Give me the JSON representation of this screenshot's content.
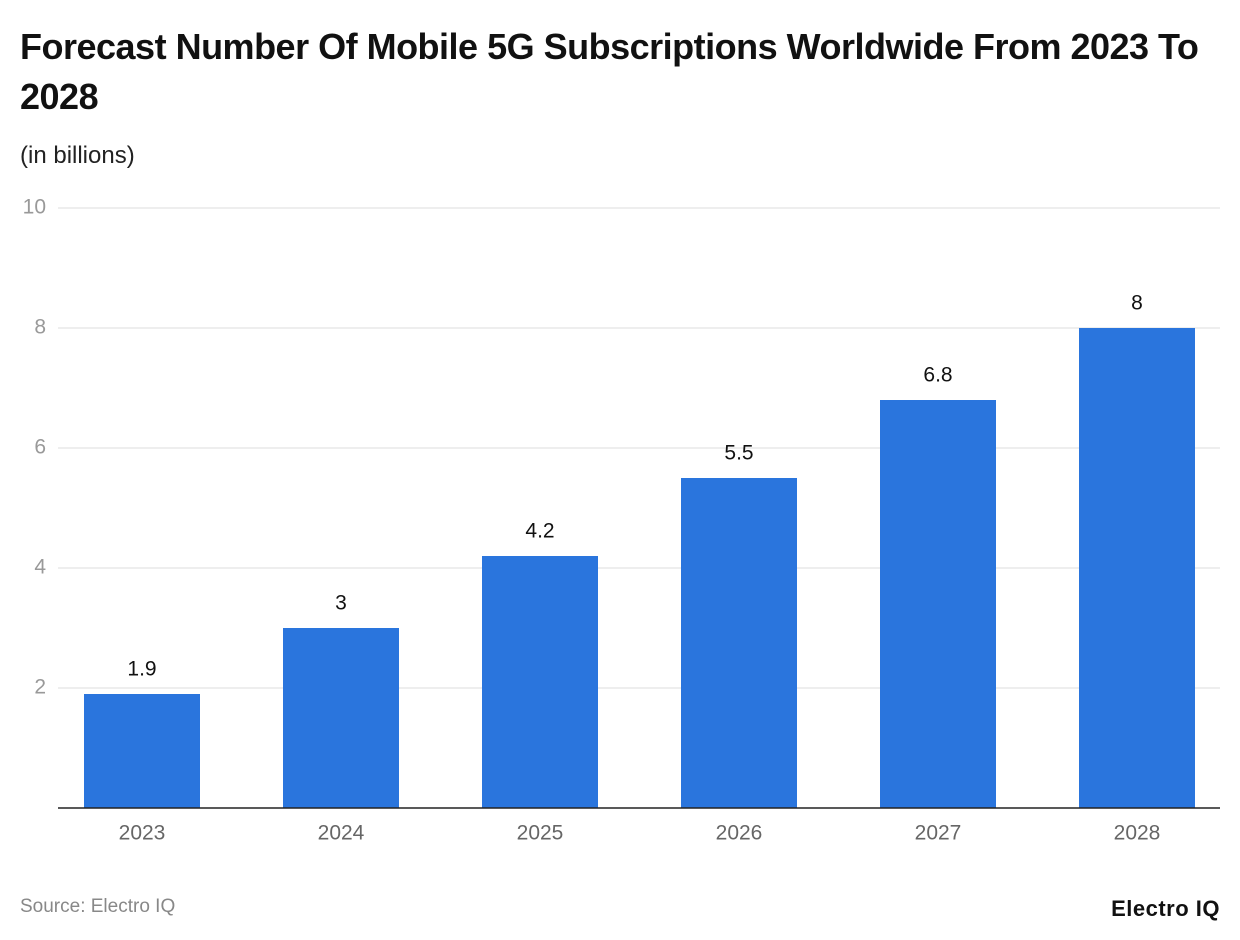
{
  "chart_data": {
    "type": "bar",
    "title": "Forecast Number Of Mobile 5G Subscriptions Worldwide From 2023 To 2028",
    "subtitle": "(in billions)",
    "categories": [
      "2023",
      "2024",
      "2025",
      "2026",
      "2027",
      "2028"
    ],
    "values": [
      1.9,
      3,
      4.2,
      5.5,
      6.8,
      8
    ],
    "color": "#2a75dd",
    "ylim": [
      0,
      10
    ],
    "yticks": [
      2,
      4,
      6,
      8,
      10
    ],
    "grid": true,
    "source": "Source: Electro IQ",
    "brand": "Electro IQ"
  }
}
